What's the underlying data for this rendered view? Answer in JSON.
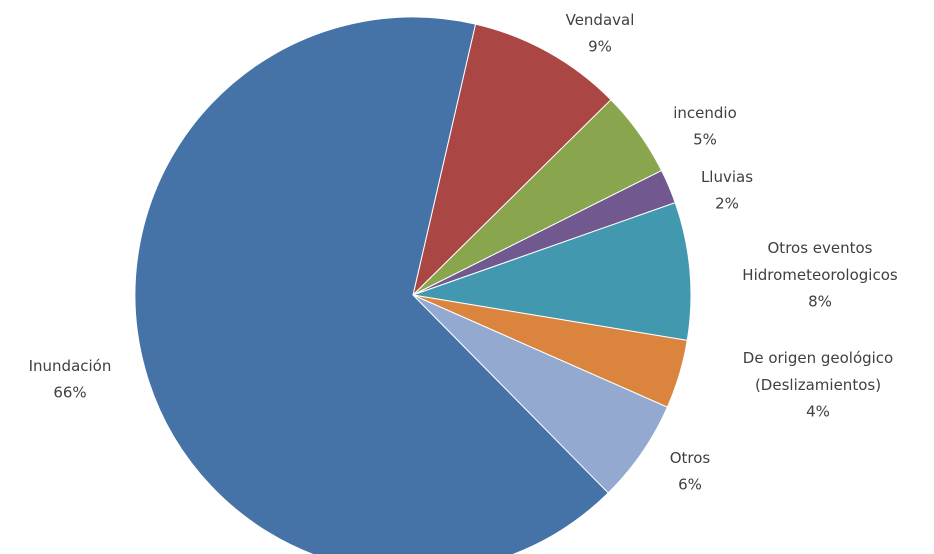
{
  "chart_data": {
    "type": "pie",
    "categories": [
      "Vendaval",
      "incendio",
      "Lluvias",
      "Otros eventos\nHidrometeorologicos",
      "De origen geológico\n(Deslizamientos)",
      "Otros",
      "Inundación"
    ],
    "values": [
      9,
      5,
      2,
      8,
      4,
      6,
      66
    ],
    "value_labels": [
      "9%",
      "5%",
      "2%",
      "8%",
      "4%",
      "6%",
      "66%"
    ],
    "colors": [
      "#aa4643",
      "#89a54e",
      "#71588f",
      "#4198af",
      "#db843d",
      "#93a9cf",
      "#4572a7"
    ]
  }
}
